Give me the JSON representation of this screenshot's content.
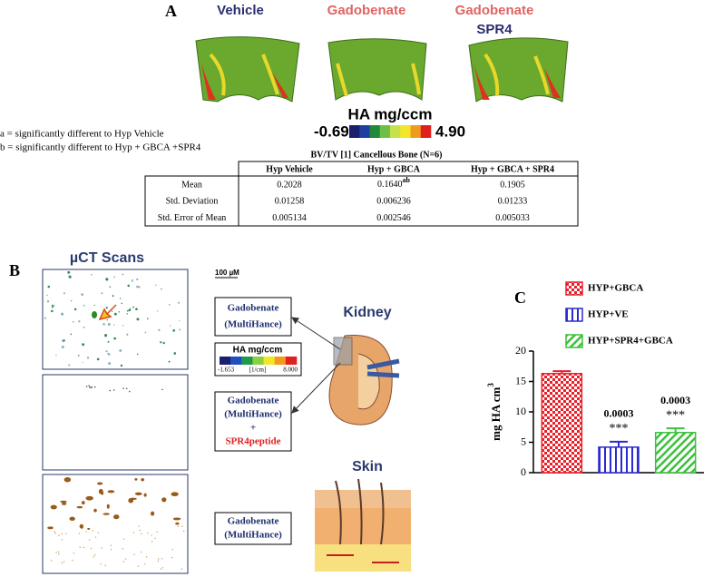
{
  "panel_a": {
    "label": "A",
    "titles": [
      "Vehicle",
      "Gadobenate",
      "Gadobenate"
    ],
    "subtitle": "SPR4",
    "colorbar": {
      "label": "HA mg/ccm",
      "min_label": "-0.69",
      "max_label": "4.90",
      "colors": [
        "#1a1f6e",
        "#1f3fa0",
        "#1f8a3a",
        "#6cc04a",
        "#c8e04a",
        "#f2e62a",
        "#f29a1e",
        "#e0201e"
      ]
    },
    "notes": [
      "a = significantly different to Hyp Vehicle",
      "b = significantly different to Hyp + GBCA +SPR4"
    ],
    "table": {
      "title": "BV/TV [1] Cancellous Bone (N=6)",
      "headers": [
        "Hyp Vehicle",
        "Hyp + GBCA",
        "Hyp + GBCA + SPR4"
      ],
      "rows": [
        {
          "label": "Mean",
          "values": [
            "0.2028",
            {
              "text": "0.1640",
              "sup": "ab"
            },
            "0.1905"
          ]
        },
        {
          "label": "Std. Deviation",
          "values": [
            "0.01258",
            "0.006236",
            "0.01233"
          ]
        },
        {
          "label": "Std. Error of Mean",
          "values": [
            "0.005134",
            "0.002546",
            "0.005033"
          ]
        }
      ]
    }
  },
  "panel_b": {
    "label": "B",
    "scans_title": "µCT Scans",
    "scale": "100 µM",
    "treatments": [
      [
        "Gadobenate",
        "(MultiHance)"
      ],
      [
        "Gadobenate",
        "(MultiHance)",
        "+",
        "SPR4peptide"
      ],
      [
        "Gadobenate",
        "(MultiHance)"
      ]
    ],
    "colorbar": {
      "label": "HA mg/ccm",
      "min_label": "-1.653",
      "unit": "[1/cm]",
      "max_label": "8.000",
      "colors": [
        "#1a1f6e",
        "#2050c0",
        "#1f9a4a",
        "#8ad040",
        "#f2e62a",
        "#f29a1e",
        "#e0201e"
      ]
    },
    "organs": [
      "Kidney",
      "Skin"
    ]
  },
  "chart_data": {
    "type": "bar",
    "label": "C",
    "ylabel": {
      "text": "mg HA cm",
      "sup": "3"
    },
    "ylim": [
      0,
      20
    ],
    "yticks": [
      0,
      5,
      10,
      15,
      20
    ],
    "series": [
      {
        "name": "HYP+GBCA",
        "color": "#e8202a",
        "pattern": "checker",
        "values": [
          16.3
        ],
        "errors": [
          0.4
        ]
      },
      {
        "name": "HYP+VE",
        "color": "#2a2ad0",
        "pattern": "vertical",
        "values": [
          4.2
        ],
        "errors": [
          0.9
        ],
        "p_value": "0.0003",
        "stars": "***"
      },
      {
        "name": "HYP+SPR4+GBCA",
        "color": "#3cc03c",
        "pattern": "diagonal",
        "values": [
          6.6
        ],
        "errors": [
          0.7
        ],
        "p_value": "0.0003",
        "stars": "***"
      }
    ]
  }
}
